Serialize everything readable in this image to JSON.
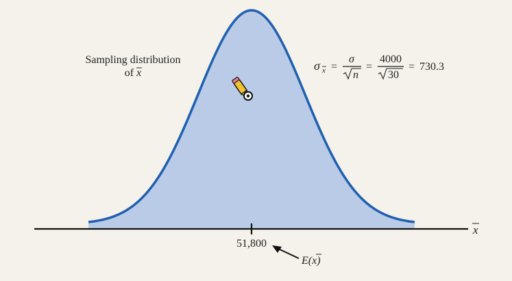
{
  "chart_data": {
    "type": "area",
    "label_line1": "Sampling distribution",
    "label_line2_text": "of ",
    "label_line2_symbol": "x",
    "formula": {
      "sigma": "σ",
      "sub": "x",
      "eq1": "=",
      "num1": "σ",
      "den1": "n",
      "eq2": "=",
      "num2": "4000",
      "den2": "30",
      "eq3": "=",
      "result": "730.3"
    },
    "center_tick": "51,800",
    "axis_label": "x",
    "expectation_label": "E(x)",
    "mean": 51800,
    "std": 730.3,
    "x_range_sd": [
      -3.05,
      3.05
    ]
  },
  "colors": {
    "curve": "#1f5fb0",
    "fill": "#b9cbe6",
    "axis": "#111111",
    "background": "#f4f2ea"
  },
  "icons": [
    "pencil-cursor-icon",
    "arrow-icon"
  ]
}
